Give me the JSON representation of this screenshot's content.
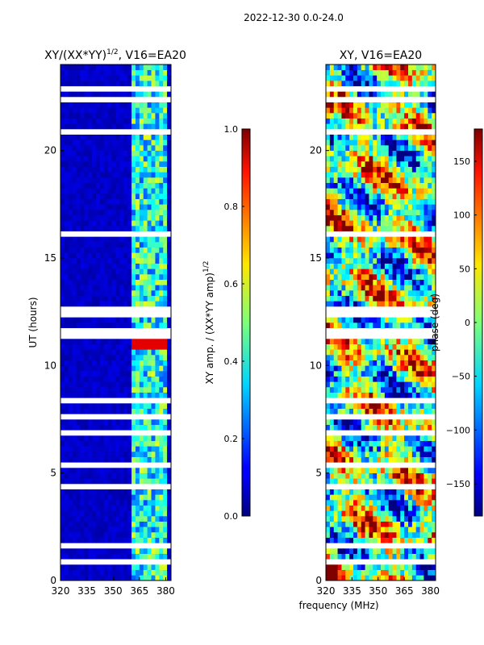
{
  "figure": {
    "suptitle": "2022-12-30 0.0-24.0",
    "shared_xlabel": "frequency (MHz)",
    "colors": {
      "background": "#ffffff",
      "panel_bg": "#00007f",
      "gap": "#ffffff",
      "text": "#000000"
    }
  },
  "chart_data": [
    {
      "type": "heatmap",
      "id": "amp",
      "title_main": "XY/(XX*YY)",
      "title_sup": "1/2",
      "title_tail": ", V16=EA20",
      "ylabel": "UT (hours)",
      "xlim": [
        320,
        383
      ],
      "ylim": [
        0,
        24
      ],
      "xticks": [
        320,
        335,
        350,
        365,
        380
      ],
      "yticks": [
        0,
        5,
        10,
        15,
        20
      ],
      "active_band_mhz": [
        360,
        380
      ],
      "value_summary": "low amplitude (~0.05) below 360 MHz; 0.2-0.6 in 360-380 MHz; ~0.9 near 11 h and 1 h",
      "colorbar": {
        "label_main": "XY amp. / (XX*YY amp)",
        "label_sup": "1/2",
        "range": [
          0.0,
          1.0
        ],
        "ticks": [
          "0.0",
          "0.2",
          "0.4",
          "0.6",
          "0.8",
          "1.0"
        ]
      }
    },
    {
      "type": "heatmap",
      "id": "phase",
      "title_main": "XY, V16=EA20",
      "ylabel": "",
      "xlim": [
        320,
        383
      ],
      "ylim": [
        0,
        24
      ],
      "xticks": [
        320,
        335,
        350,
        365,
        380
      ],
      "yticks": [
        0,
        5,
        10,
        15,
        20
      ],
      "value_summary": "phase spans full range -180 to 180 deg, noisy across all frequencies",
      "colorbar": {
        "label_main": "phase (deg)",
        "range": [
          -180,
          180
        ],
        "ticks": [
          "-150",
          "-100",
          "-50",
          "0",
          "50",
          "100",
          "150"
        ]
      }
    }
  ],
  "flagged_gaps_hours": [
    0.85,
    1.6,
    3.0,
    4.3,
    5.3,
    6.9,
    7.55,
    8.3,
    10.75,
    11.3,
    11.65,
    12.3,
    12.55,
    16.2,
    20.95,
    21.5,
    22.3,
    22.8
  ]
}
